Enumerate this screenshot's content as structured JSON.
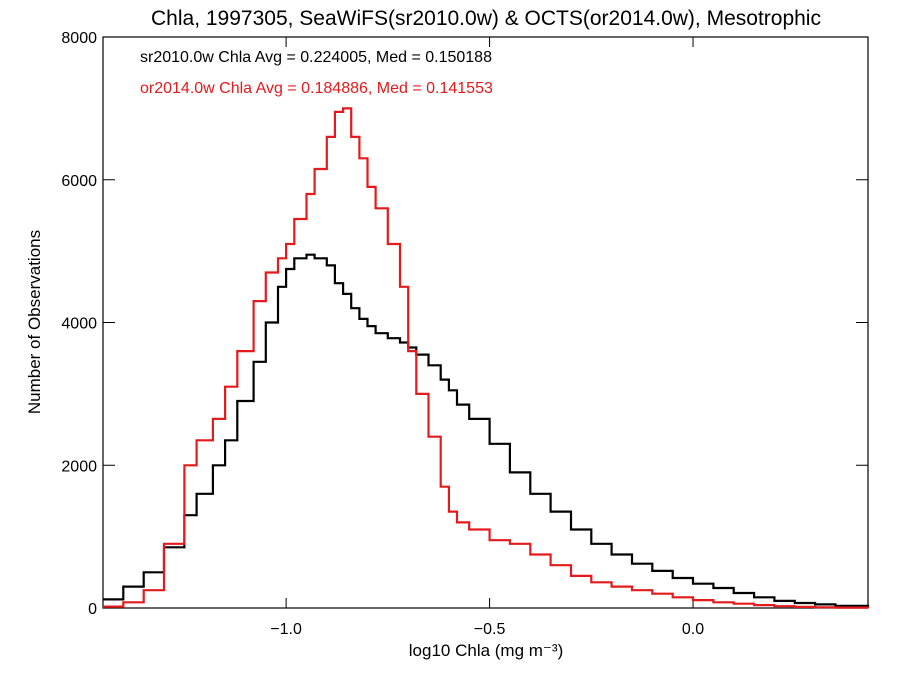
{
  "chart_data": {
    "type": "line",
    "title": "Chla, 1997305, SeaWiFS(sr2010.0w) & OCTS(or2014.0w), Mesotrophic",
    "xlabel": "log10 Chla (mg m⁻³)",
    "ylabel": "Number of Observations",
    "xlim": [
      -1.45,
      0.43
    ],
    "ylim": [
      0,
      8000
    ],
    "x_ticks": [
      {
        "value": -1.0,
        "label": "−1.0"
      },
      {
        "value": -0.5,
        "label": "−0.5"
      },
      {
        "value": 0.0,
        "label": "0.0"
      }
    ],
    "y_ticks": [
      {
        "value": 0,
        "label": "0"
      },
      {
        "value": 2000,
        "label": "2000"
      },
      {
        "value": 4000,
        "label": "4000"
      },
      {
        "value": 6000,
        "label": "6000"
      },
      {
        "value": 8000,
        "label": "8000"
      }
    ],
    "grid": false,
    "x": [
      -1.45,
      -1.4,
      -1.35,
      -1.3,
      -1.25,
      -1.22,
      -1.18,
      -1.15,
      -1.12,
      -1.08,
      -1.05,
      -1.02,
      -1.0,
      -0.98,
      -0.95,
      -0.93,
      -0.9,
      -0.88,
      -0.86,
      -0.84,
      -0.82,
      -0.8,
      -0.78,
      -0.75,
      -0.72,
      -0.7,
      -0.68,
      -0.65,
      -0.62,
      -0.6,
      -0.58,
      -0.55,
      -0.5,
      -0.45,
      -0.4,
      -0.35,
      -0.3,
      -0.25,
      -0.2,
      -0.15,
      -0.1,
      -0.05,
      0.0,
      0.05,
      0.1,
      0.15,
      0.2,
      0.25,
      0.3,
      0.35,
      0.43
    ],
    "series": [
      {
        "name": "sr2010.0w",
        "color": "#000000",
        "values": [
          120,
          300,
          500,
          850,
          1300,
          1600,
          2000,
          2350,
          2900,
          3450,
          4000,
          4500,
          4750,
          4900,
          4950,
          4900,
          4800,
          4550,
          4400,
          4200,
          4050,
          3950,
          3850,
          3780,
          3720,
          3650,
          3550,
          3400,
          3200,
          3050,
          2850,
          2650,
          2300,
          1900,
          1600,
          1350,
          1100,
          900,
          750,
          620,
          520,
          420,
          340,
          280,
          210,
          150,
          100,
          70,
          50,
          30,
          10
        ]
      },
      {
        "name": "or2014.0w",
        "color": "#e41a1c",
        "values": [
          20,
          80,
          250,
          900,
          2000,
          2350,
          2650,
          3100,
          3600,
          4300,
          4700,
          4900,
          5100,
          5450,
          5800,
          6150,
          6600,
          6950,
          7000,
          6600,
          6300,
          5900,
          5600,
          5100,
          4500,
          3600,
          3000,
          2400,
          1700,
          1350,
          1200,
          1100,
          950,
          900,
          750,
          600,
          450,
          360,
          300,
          250,
          200,
          150,
          110,
          80,
          60,
          40,
          25,
          15,
          10,
          5,
          2
        ]
      }
    ],
    "annotations": [
      {
        "text": "sr2010.0w Chla Avg = 0.224005, Med = 0.150188",
        "color": "#000000"
      },
      {
        "text": "or2014.0w Chla Avg = 0.184886, Med = 0.141553",
        "color": "#e41a1c"
      }
    ]
  }
}
